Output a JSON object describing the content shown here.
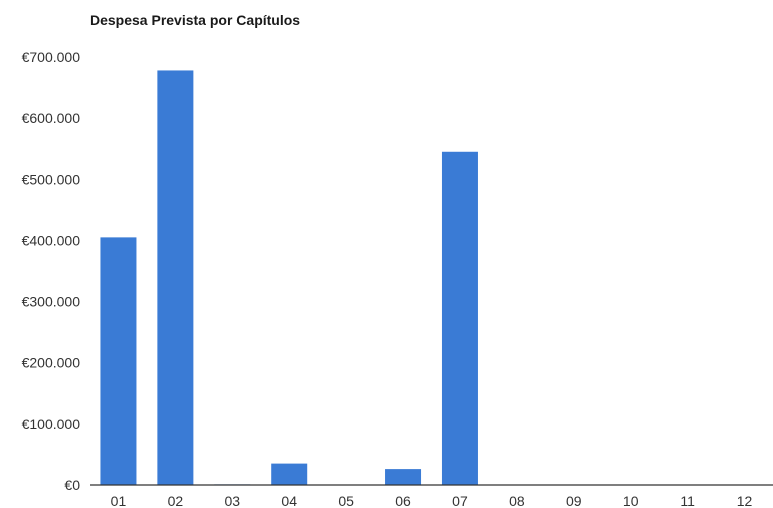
{
  "chart_data": {
    "type": "bar",
    "title": "Despesa Prevista por Capítulos",
    "xlabel": "",
    "ylabel": "",
    "categories": [
      "01",
      "02",
      "03",
      "04",
      "05",
      "06",
      "07",
      "08",
      "09",
      "10",
      "11",
      "12"
    ],
    "values": [
      405000,
      678000,
      1000,
      35000,
      0,
      26000,
      545000,
      0,
      0,
      0,
      0,
      0
    ],
    "ylim": [
      0,
      700000
    ],
    "yticks": [
      0,
      100000,
      200000,
      300000,
      400000,
      500000,
      600000,
      700000
    ],
    "ytick_labels": [
      "€0",
      "€100.000",
      "€200.000",
      "€300.000",
      "€400.000",
      "€500.000",
      "€600.000",
      "€700.000"
    ],
    "grid": false,
    "legend": "none",
    "bar_color": "#3a7bd5"
  }
}
